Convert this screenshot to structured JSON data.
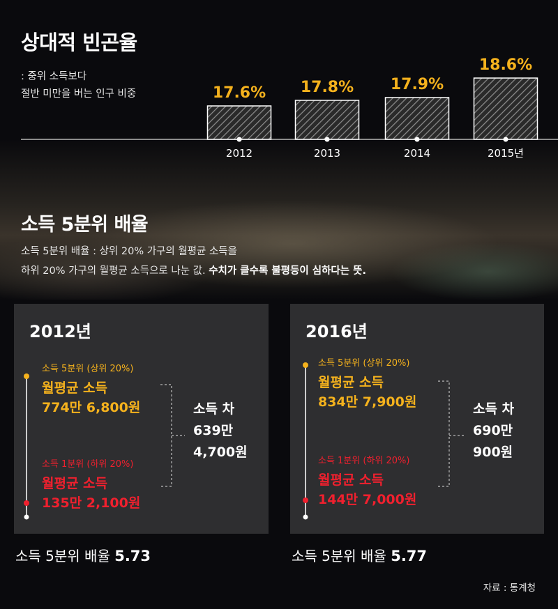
{
  "section1": {
    "title": "상대적 빈곤율",
    "desc_line1": ": 중위 소득보다",
    "desc_line2": "절반 미만을 버는 인구 비중"
  },
  "chart_data": {
    "type": "bar",
    "title": "상대적 빈곤율",
    "categories": [
      "2012",
      "2013",
      "2014",
      "2015년"
    ],
    "values": [
      17.6,
      17.8,
      17.9,
      18.6
    ],
    "value_labels": [
      "17.6%",
      "17.8%",
      "17.9%",
      "18.6%"
    ],
    "xlabel": "",
    "ylabel": "",
    "bar_style": "diagonal hatching",
    "colors": {
      "label": "#f5b21d",
      "bar_fill": "#2a2a2a",
      "bar_stroke": "#ffffff",
      "hatch": "#8c8c8c"
    }
  },
  "section2": {
    "title": "소득 5분위 배율",
    "desc_line1": "소득 5분위 배율 : 상위 20% 가구의 월평균 소득을",
    "desc_line2_plain": "하위 20% 가구의 월평균 소득으로 나눈 값.",
    "desc_line2_bold": "수치가 클수록 불평등이 심하다는 뜻."
  },
  "panels": [
    {
      "year": "2012년",
      "top_caption": "소득 5분위 (상위 20%)",
      "top_label": "월평균 소득",
      "top_value": "774만 6,800원",
      "bottom_caption": "소득 1분위 (하위 20%)",
      "bottom_label": "월평균 소득",
      "bottom_value": "135만 2,100원",
      "diff_label": "소득 차",
      "diff_line1": "639만",
      "diff_line2": "4,700원",
      "ratio_label": "소득 5분위 배율",
      "ratio_value": "5.73"
    },
    {
      "year": "2016년",
      "top_caption": "소득 5분위 (상위 20%)",
      "top_label": "월평균 소득",
      "top_value": "834만 7,900원",
      "bottom_caption": "소득 1분위 (하위 20%)",
      "bottom_label": "월평균 소득",
      "bottom_value": "144만 7,000원",
      "diff_label": "소득 차",
      "diff_line1": "690만",
      "diff_line2": "900원",
      "ratio_label": "소득 5분위 배율",
      "ratio_value": "5.77"
    }
  ],
  "source": "자료 : 통계청",
  "colors": {
    "gold": "#f5b21d",
    "red": "#f0202e",
    "panel": "#2e2e30"
  }
}
